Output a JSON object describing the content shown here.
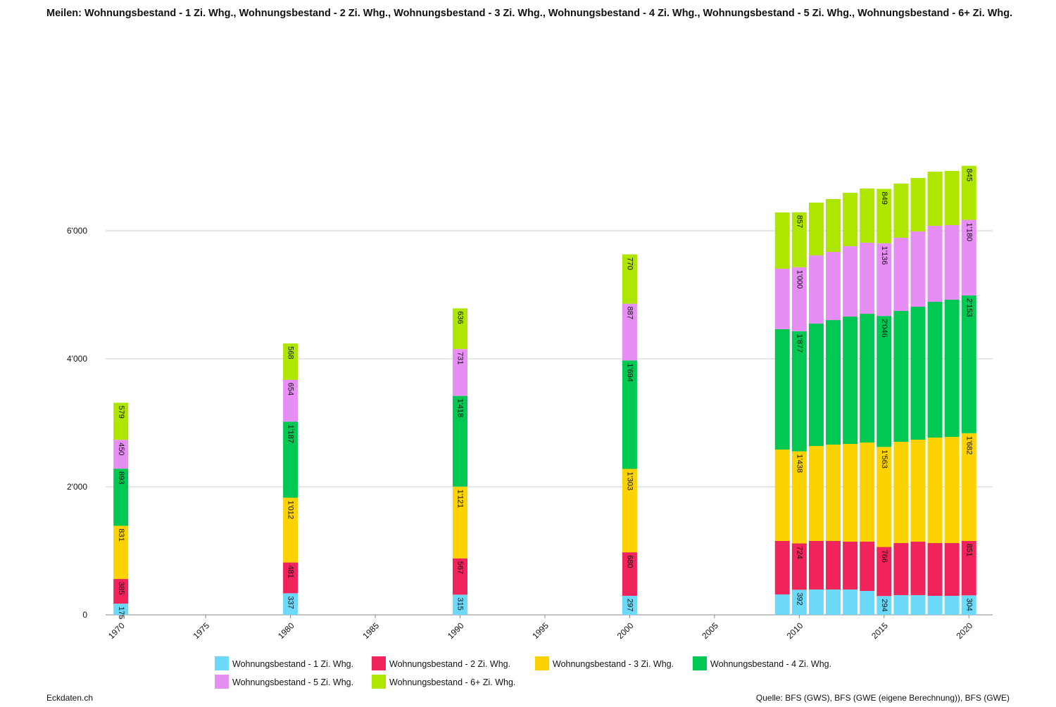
{
  "chart_data": {
    "type": "stacked_bar",
    "title": "Meilen: Wohnungsbestand - 1 Zi. Whg., Wohnungsbestand - 2 Zi. Whg., Wohnungsbestand - 3 Zi. Whg., Wohnungsbestand - 4 Zi. Whg., Wohnungsbestand - 5 Zi. Whg., Wohnungsbestand - 6+ Zi. Whg.",
    "x": [
      1970,
      1980,
      1990,
      2000,
      2009,
      2010,
      2011,
      2012,
      2013,
      2014,
      2015,
      2016,
      2017,
      2018,
      2019,
      2020
    ],
    "series": [
      {
        "name": "Wohnungsbestand - 1 Zi. Whg.",
        "color": "#6dd9f9",
        "values": [
          175,
          337,
          315,
          297,
          319,
          392,
          396,
          396,
          396,
          374,
          294,
          308,
          308,
          297,
          297,
          304
        ],
        "value_labels": [
          "175",
          "337",
          "315",
          "297",
          null,
          "392",
          null,
          null,
          null,
          null,
          "294",
          null,
          null,
          null,
          null,
          "304"
        ]
      },
      {
        "name": "Wohnungsbestand - 2 Zi. Whg.",
        "color": "#f0245a",
        "values": [
          385,
          481,
          567,
          680,
          835,
          724,
          758,
          758,
          747,
          769,
          766,
          813,
          835,
          824,
          824,
          851
        ],
        "value_labels": [
          "385",
          "481",
          "567",
          "680",
          null,
          "724",
          null,
          null,
          null,
          null,
          "766",
          null,
          null,
          null,
          null,
          "851"
        ]
      },
      {
        "name": "Wohnungsbestand - 3 Zi. Whg.",
        "color": "#fcd200",
        "values": [
          831,
          1012,
          1121,
          1303,
          1428,
          1438,
          1483,
          1505,
          1527,
          1549,
          1563,
          1582,
          1593,
          1648,
          1659,
          1682
        ],
        "value_labels": [
          "831",
          "1'012",
          "1'121",
          "1'303",
          null,
          "1'438",
          null,
          null,
          null,
          null,
          "1'563",
          null,
          null,
          null,
          null,
          "1'682"
        ]
      },
      {
        "name": "Wohnungsbestand - 4 Zi. Whg.",
        "color": "#00c853",
        "values": [
          893,
          1187,
          1418,
          1694,
          1880,
          1877,
          1912,
          1945,
          1989,
          2011,
          2046,
          2044,
          2077,
          2121,
          2143,
          2153
        ],
        "value_labels": [
          "893",
          "1'187",
          "1'418",
          "1'694",
          null,
          "1'877",
          null,
          null,
          null,
          null,
          "2'046",
          null,
          null,
          null,
          null,
          "2'153"
        ]
      },
      {
        "name": "Wohnungsbestand - 5 Zi. Whg.",
        "color": "#e78ef5",
        "values": [
          450,
          654,
          731,
          887,
          945,
          1000,
          1066,
          1066,
          1099,
          1110,
          1136,
          1143,
          1176,
          1187,
          1165,
          1180
        ],
        "value_labels": [
          "450",
          "654",
          "731",
          "887",
          null,
          "1'000",
          null,
          null,
          null,
          null,
          "1'136",
          null,
          null,
          null,
          null,
          "1'180"
        ]
      },
      {
        "name": "Wohnungsbestand - 6+ Zi. Whg.",
        "color": "#aee600",
        "values": [
          579,
          568,
          636,
          770,
          879,
          857,
          825,
          825,
          835,
          846,
          849,
          846,
          835,
          846,
          846,
          845
        ],
        "value_labels": [
          "579",
          "568",
          "636",
          "770",
          null,
          "857",
          null,
          null,
          null,
          null,
          "849",
          null,
          null,
          null,
          null,
          "845"
        ]
      }
    ],
    "xlim": [
      1969.1,
      2021.4
    ],
    "xticks": [
      1970,
      1975,
      1980,
      1985,
      1990,
      1995,
      2000,
      2005,
      2010,
      2015,
      2020
    ],
    "ylim": [
      0,
      8000
    ],
    "yticks": [
      0,
      {
        "value": 2000,
        "label": "2'000"
      },
      {
        "value": 4000,
        "label": "4'000"
      },
      {
        "value": 6000,
        "label": "6'000"
      }
    ],
    "grid": true,
    "legend": "bottom",
    "footer_left": "Eckdaten.ch",
    "source": "Quelle: BFS (GWS), BFS (GWE (eigene Berechnung)), BFS (GWE)"
  }
}
